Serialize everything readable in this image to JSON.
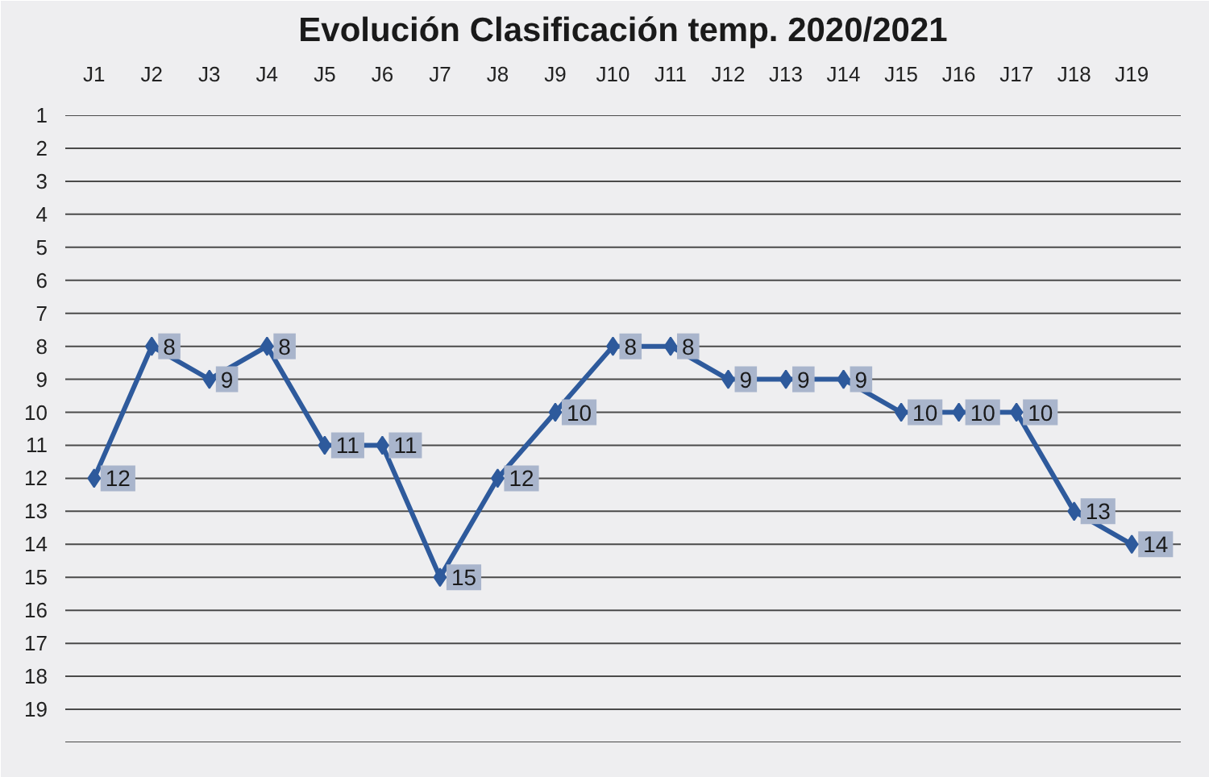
{
  "chart_data": {
    "type": "line",
    "title": "Evolución Clasificación temp. 2020/2021",
    "categories": [
      "J1",
      "J2",
      "J3",
      "J4",
      "J5",
      "J6",
      "J7",
      "J8",
      "J9",
      "J10",
      "J11",
      "J12",
      "J13",
      "J14",
      "J15",
      "J16",
      "J17",
      "J18",
      "J19"
    ],
    "series": [
      {
        "color": "#2e5a9c",
        "values": [
          12,
          8,
          9,
          8,
          11,
          11,
          15,
          12,
          10,
          8,
          8,
          9,
          9,
          9,
          10,
          10,
          10,
          13,
          14
        ]
      }
    ],
    "ylim": [
      20,
      1
    ],
    "yticks": [
      1,
      2,
      3,
      4,
      5,
      6,
      7,
      8,
      9,
      10,
      11,
      12,
      13,
      14,
      15,
      16,
      17,
      18,
      19,
      {
        "value": 20,
        "label": null
      }
    ],
    "grid": "y",
    "marker": "diamond",
    "line_style": "solid",
    "data_labels": true
  }
}
